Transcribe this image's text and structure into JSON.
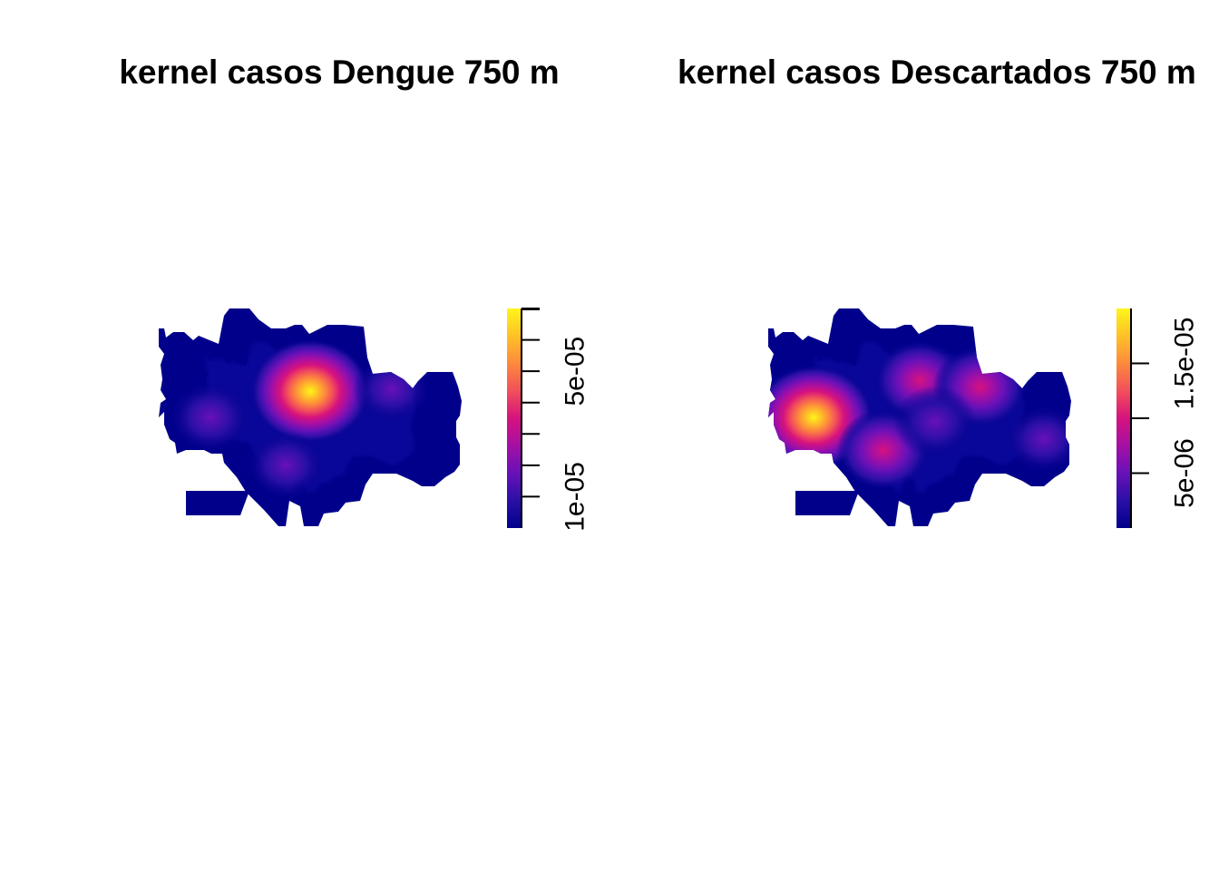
{
  "chart_data": [
    {
      "type": "heatmap",
      "title": "kernel casos Dengue 750 m",
      "xlabel": "",
      "ylabel": "",
      "legend": {
        "position": "right",
        "range": [
          0,
          7e-05
        ],
        "tick_values": [
          1e-05,
          2e-05,
          3e-05,
          4e-05,
          5e-05,
          6e-05,
          7e-05
        ],
        "tick_labels": [
          {
            "value": 1e-05,
            "label": "1e-05"
          },
          {
            "value": 5e-05,
            "label": "5e-05"
          }
        ]
      },
      "hotspots": [
        {
          "x": 0.5,
          "y": 0.62,
          "intensity": 1.0
        },
        {
          "x": 0.17,
          "y": 0.5,
          "intensity": 0.3
        },
        {
          "x": 0.42,
          "y": 0.28,
          "intensity": 0.24
        },
        {
          "x": 0.77,
          "y": 0.63,
          "intensity": 0.22
        }
      ]
    },
    {
      "type": "heatmap",
      "title": "kernel casos  Descartados 750 m",
      "xlabel": "",
      "ylabel": "",
      "legend": {
        "position": "right",
        "range": [
          0,
          2e-05
        ],
        "tick_values": [
          5e-06,
          1e-05,
          1.5e-05
        ],
        "tick_labels": [
          {
            "value": 5e-06,
            "label": "5e-06"
          },
          {
            "value": 1.5e-05,
            "label": "1.5e-05"
          }
        ]
      },
      "hotspots": [
        {
          "x": 0.15,
          "y": 0.5,
          "intensity": 1.0
        },
        {
          "x": 0.5,
          "y": 0.67,
          "intensity": 0.48
        },
        {
          "x": 0.7,
          "y": 0.64,
          "intensity": 0.52
        },
        {
          "x": 0.38,
          "y": 0.35,
          "intensity": 0.5
        },
        {
          "x": 0.55,
          "y": 0.48,
          "intensity": 0.3
        },
        {
          "x": 0.91,
          "y": 0.4,
          "intensity": 0.24
        }
      ]
    }
  ],
  "colormap": [
    "#00008b",
    "#2a0fa6",
    "#6811b8",
    "#a50fa4",
    "#d6127e",
    "#f24f5a",
    "#fd8a3c",
    "#fec127",
    "#fff51a"
  ]
}
